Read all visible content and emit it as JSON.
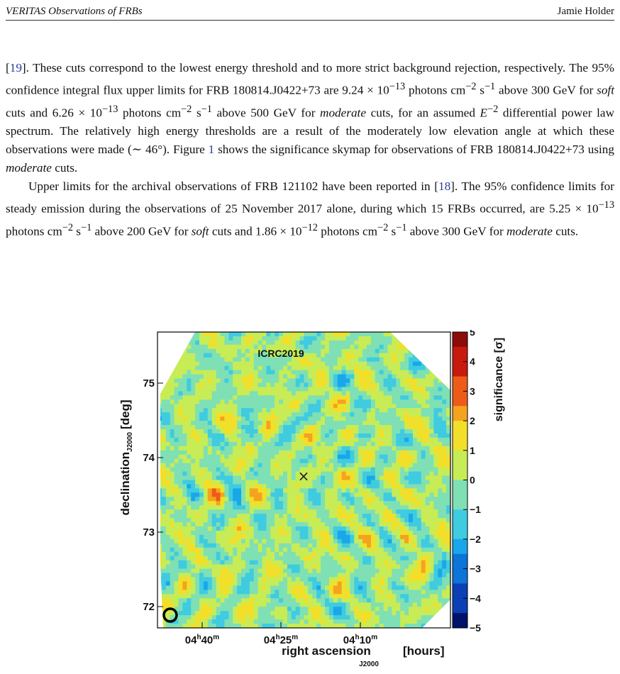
{
  "header": {
    "title": "VERITAS Observations of FRBs",
    "author": "Jamie Holder"
  },
  "para1": {
    "ref1": "19",
    "t1": "]. These cuts correspond to the lowest energy threshold and to more strict background rejection, respectively. The 95% confidence integral flux upper limits for FRB 180814.J0422+73 are 9.24 × 10",
    "t2": " photons cm",
    "t3": " s",
    "t4": " above 300 GeV for ",
    "soft": "soft",
    "t5": " cuts and 6.26 × 10",
    "t6": " photons cm",
    "t7": " s",
    "t8": " above 500 GeV for ",
    "moderate": "moderate",
    "t9": " cuts, for an assumed ",
    "e": "E",
    "t10": " differential power law spectrum. The relatively high energy thresholds are a result of the moderately low elevation angle at which these observations were made (∼ 46°). Figure ",
    "fig": "1",
    "t11": " shows the significance skymap for observations of FRB 180814.J0422+73 using ",
    "moderate2": "moderate",
    "t12": " cuts."
  },
  "para2": {
    "t1": "Upper limits for the archival observations of FRB 121102 have been reported in [",
    "ref": "18",
    "t2": "]. The 95% confidence limits for steady emission during the observations of 25 November 2017 alone, during which 15 FRBs occurred, are 5.25 × 10",
    "t3": " photons cm",
    "t4": " s",
    "t5": " above 200 GeV for ",
    "soft": "soft",
    "t6": " cuts and 1.86 × 10",
    "t7": " photons cm",
    "t8": " s",
    "t9": " above 300 GeV for ",
    "moderate": "moderate",
    "t10": " cuts."
  },
  "sup": {
    "m13": "−13",
    "m12": "−12",
    "m2": "−2",
    "m1": "−1"
  },
  "chart_data": {
    "type": "heatmap",
    "watermark": "ICRC2019",
    "xlabel": "right ascension",
    "xlabel_sub": "J2000",
    "xlabel_unit": "[hours]",
    "ylabel": "declination",
    "ylabel_sub": "J2000",
    "ylabel_unit": "[deg]",
    "x_ticks": [
      {
        "h": "04",
        "hs": "h",
        "m": "40",
        "ms": "m"
      },
      {
        "h": "04",
        "hs": "h",
        "m": "25",
        "ms": "m"
      },
      {
        "h": "04",
        "hs": "h",
        "m": "10",
        "ms": "m"
      }
    ],
    "y_ticks": [
      "75",
      "74",
      "73",
      "72"
    ],
    "colorbar_label": "significance [σ]",
    "colorbar_ticks": [
      "5",
      "4",
      "3",
      "2",
      "1",
      "0",
      "−1",
      "−2",
      "−3",
      "−4",
      "−5"
    ],
    "zlim": [
      -5,
      5
    ],
    "marker": "×",
    "colors": [
      "#00126a",
      "#0a3fb5",
      "#0d74d8",
      "#19a7ea",
      "#3fcbe0",
      "#7ee0b4",
      "#c8ec55",
      "#f2df2a",
      "#f5a21f",
      "#ee5b18",
      "#c8190f",
      "#8c0c08"
    ]
  }
}
